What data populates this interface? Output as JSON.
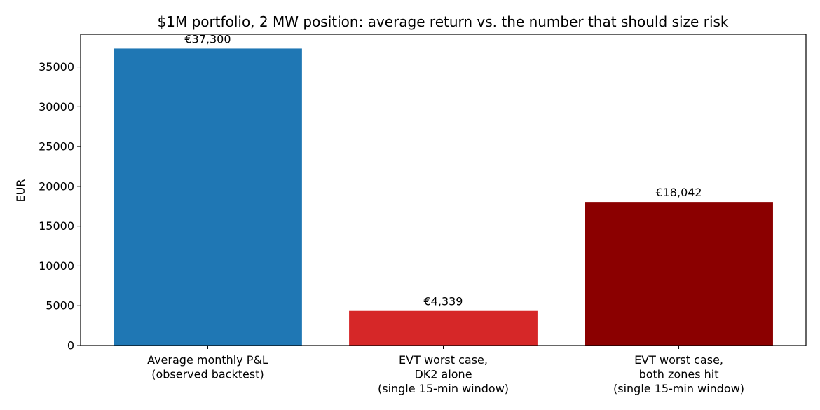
{
  "chart_data": {
    "type": "bar",
    "title": "$1M portfolio, 2 MW position: average return vs. the number that should size risk",
    "xlabel": "",
    "ylabel": "EUR",
    "ylim": [
      0,
      39100
    ],
    "yticks": [
      0,
      5000,
      10000,
      15000,
      20000,
      25000,
      30000,
      35000
    ],
    "ytick_labels": [
      "0",
      "5000",
      "10000",
      "15000",
      "20000",
      "25000",
      "30000",
      "35000"
    ],
    "grid": false,
    "categories": [
      [
        "Average monthly P&L",
        "(observed backtest)"
      ],
      [
        "EVT worst case,",
        "DK2 alone",
        "(single 15-min window)"
      ],
      [
        "EVT worst case,",
        "both zones hit",
        "(single 15-min window)"
      ]
    ],
    "values": [
      37300,
      4339,
      18042
    ],
    "data_labels": [
      "€37,300",
      "€4,339",
      "€18,042"
    ],
    "colors": [
      "#1f77b4",
      "#d62728",
      "#8b0000"
    ]
  }
}
